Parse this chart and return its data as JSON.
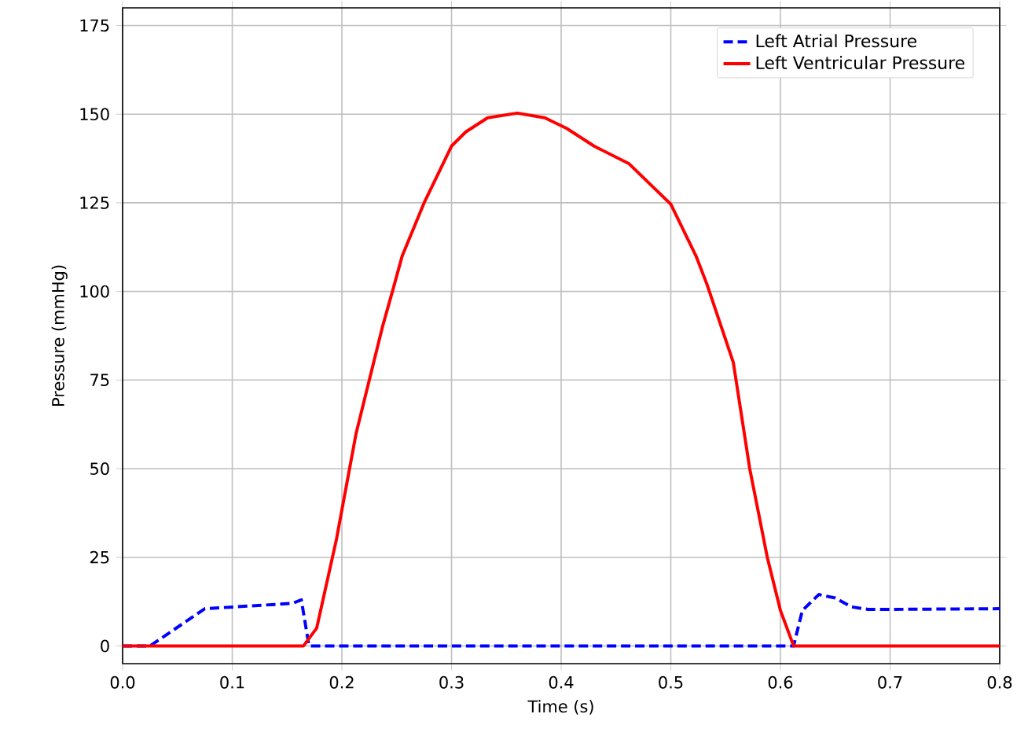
{
  "chart_data": {
    "type": "line",
    "xlabel": "Time (s)",
    "ylabel": "Pressure (mmHg)",
    "xlim": [
      0,
      0.8
    ],
    "ylim": [
      -5,
      180
    ],
    "xticks": [
      {
        "value": 0,
        "label": "0.0"
      },
      0.1,
      0.2,
      0.3,
      0.4,
      0.5,
      0.6,
      0.7,
      {
        "value": 0.8,
        "label": "0.8"
      }
    ],
    "yticks": [
      0,
      25,
      50,
      75,
      100,
      125,
      150,
      175
    ],
    "grid": true,
    "legend": "top right",
    "series": [
      {
        "name": "Left Atrial Pressure",
        "color": "#0000ff",
        "line_style": "dashed",
        "x": [
          0,
          0.025,
          0.075,
          0.155,
          0.163,
          0.17,
          0.61,
          0.612,
          0.62,
          0.635,
          0.65,
          0.665,
          0.68,
          0.7,
          0.8
        ],
        "values": [
          0,
          0,
          10.5,
          12,
          13,
          0,
          0,
          0,
          10,
          14.5,
          13.5,
          11,
          10.3,
          10.3,
          10.5
        ]
      },
      {
        "name": "Left Ventricular Pressure",
        "color": "#ff0000",
        "line_style": "solid",
        "x": [
          0,
          0.165,
          0.177,
          0.195,
          0.213,
          0.237,
          0.247,
          0.255,
          0.275,
          0.3,
          0.313,
          0.333,
          0.36,
          0.385,
          0.405,
          0.43,
          0.462,
          0.5,
          0.523,
          0.533,
          0.557,
          0.572,
          0.588,
          0.6,
          0.612,
          0.8
        ],
        "values": [
          0,
          0,
          5,
          30,
          60,
          90,
          101,
          110,
          125,
          141,
          145,
          149,
          150.3,
          149,
          146,
          141,
          136,
          124.6,
          110,
          102,
          80,
          50,
          25,
          10,
          0,
          0
        ]
      }
    ]
  }
}
